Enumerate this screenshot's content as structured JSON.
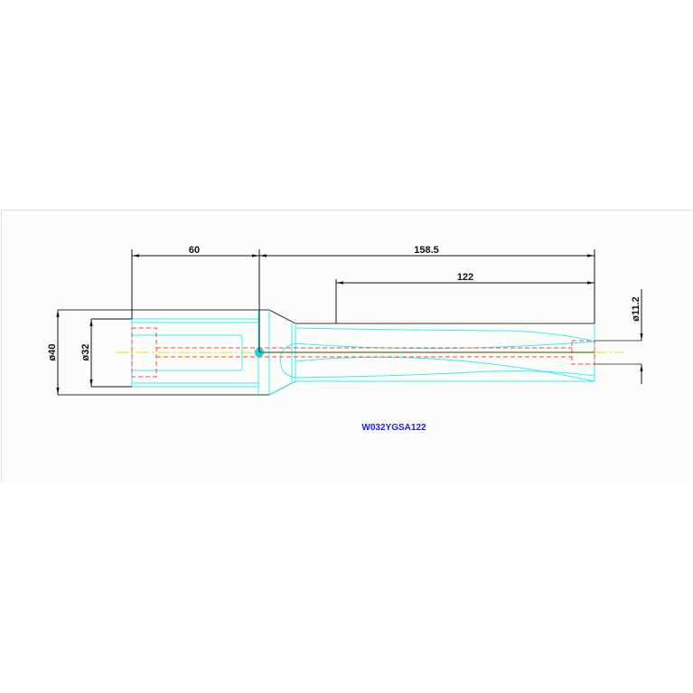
{
  "drawing": {
    "dimensions": {
      "length_60": "60",
      "length_158_5": "158.5",
      "length_122": "122",
      "diameter_40": "ø40",
      "diameter_32": "ø32",
      "diameter_11_2": "ø11.2"
    },
    "part_number": "W032YGSA122",
    "colors": {
      "outline": "#333333",
      "tool_body": "#33f0f0",
      "hidden_line": "#ff4444",
      "center_line": "#eeee00",
      "part_number": "#1a1aff"
    }
  }
}
